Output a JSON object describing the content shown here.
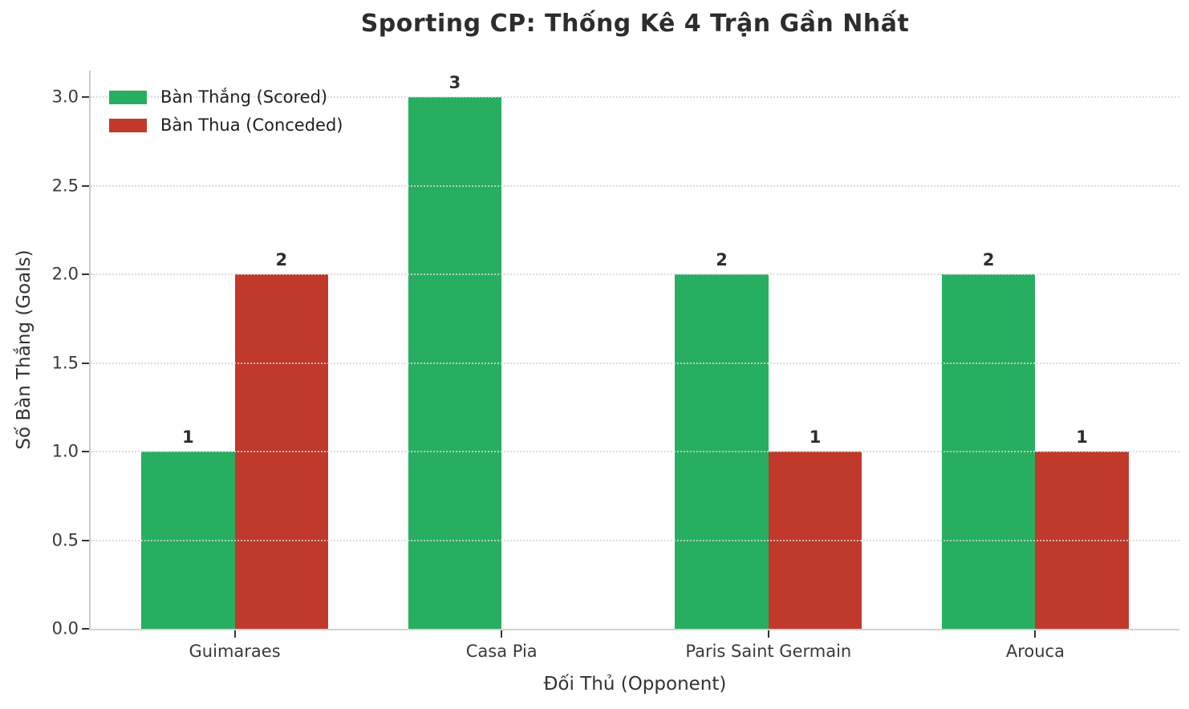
{
  "chart_data": {
    "type": "bar",
    "title": "Sporting CP: Thống Kê 4 Trận Gần Nhất",
    "xlabel": "Đối Thủ (Opponent)",
    "ylabel": "Số Bàn Thắng (Goals)",
    "categories": [
      "Guimaraes",
      "Casa Pia",
      "Paris Saint Germain",
      "Arouca"
    ],
    "series": [
      {
        "name": "Bàn Thắng (Scored)",
        "values": [
          1,
          3,
          2,
          2
        ],
        "color": "#27ae60"
      },
      {
        "name": "Bàn Thua (Conceded)",
        "values": [
          2,
          0,
          1,
          1
        ],
        "color": "#c0392b"
      }
    ],
    "bar_value_labels": [
      "1",
      "2",
      "3",
      "2",
      "1",
      "2",
      "1"
    ],
    "ylim": [
      0,
      3.15
    ],
    "yticks": [
      0,
      0.5,
      1,
      1.5,
      2,
      2.5,
      3
    ],
    "ytick_labels": [
      "0.0",
      "0.5",
      "1.0",
      "1.5",
      "2.0",
      "2.5",
      "3.0"
    ],
    "grid": "horizontal-dotted",
    "grid_color": "#d6d6d6",
    "legend_position": "upper-left",
    "zero_values_hidden": true
  }
}
